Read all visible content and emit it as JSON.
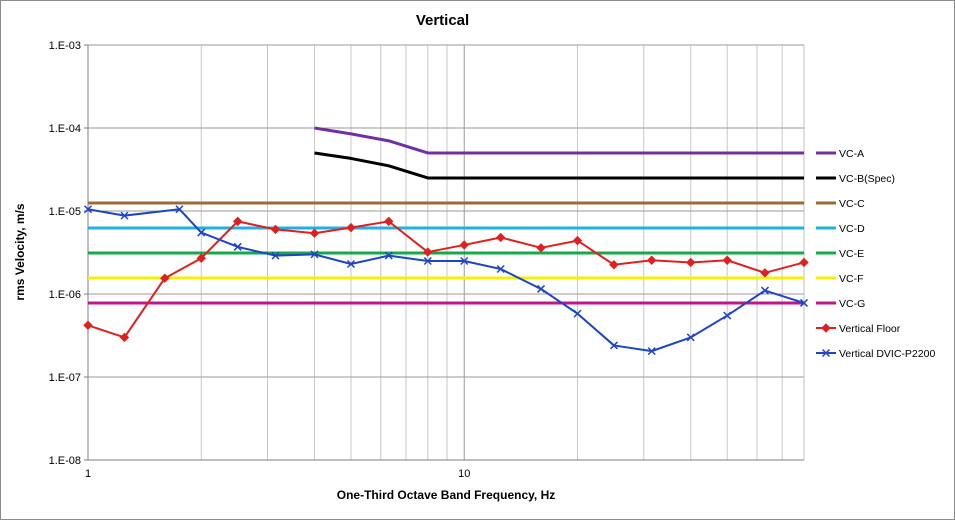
{
  "chart_data": {
    "type": "line",
    "title": "Vertical",
    "xlabel": "One-Third Octave Band Frequency, Hz",
    "ylabel": "rms Velocity, m/s",
    "x_scale": "log",
    "y_scale": "log",
    "xlim": [
      1,
      80
    ],
    "ylim": [
      1e-08,
      0.001
    ],
    "x_ticks": [
      {
        "value": 1,
        "label": "1"
      },
      {
        "value": 10,
        "label": "10"
      }
    ],
    "y_ticks": [
      {
        "value": 1e-08,
        "label": "1.E-08"
      },
      {
        "value": 1e-07,
        "label": "1.E-07"
      },
      {
        "value": 1e-06,
        "label": "1.E-06"
      },
      {
        "value": 1e-05,
        "label": "1.E-05"
      },
      {
        "value": 0.0001,
        "label": "1.E-04"
      },
      {
        "value": 0.001,
        "label": "1.E-03"
      }
    ],
    "grid": true,
    "legend": "right",
    "series": [
      {
        "name": "VC-A",
        "color": "#7030a0",
        "marker": "none",
        "width": 3,
        "x": [
          4,
          5,
          6.3,
          8,
          10,
          80
        ],
        "y": [
          0.0001,
          8.5e-05,
          7e-05,
          5e-05,
          5e-05,
          5e-05
        ]
      },
      {
        "name": "VC-B(Spec)",
        "color": "#000000",
        "marker": "none",
        "width": 3,
        "x": [
          4,
          5,
          6.3,
          8,
          10,
          80
        ],
        "y": [
          5e-05,
          4.3e-05,
          3.5e-05,
          2.5e-05,
          2.5e-05,
          2.5e-05
        ]
      },
      {
        "name": "VC-C",
        "color": "#9c6a34",
        "marker": "none",
        "width": 3,
        "x": [
          1,
          80
        ],
        "y": [
          1.25e-05,
          1.25e-05
        ]
      },
      {
        "name": "VC-D",
        "color": "#1fb0e6",
        "marker": "none",
        "width": 3,
        "x": [
          1,
          80
        ],
        "y": [
          6.25e-06,
          6.25e-06
        ]
      },
      {
        "name": "VC-E",
        "color": "#17a84a",
        "marker": "none",
        "width": 3,
        "x": [
          1,
          80
        ],
        "y": [
          3.12e-06,
          3.12e-06
        ]
      },
      {
        "name": "VC-F",
        "color": "#f5f000",
        "marker": "none",
        "width": 3,
        "x": [
          1,
          80
        ],
        "y": [
          1.56e-06,
          1.56e-06
        ]
      },
      {
        "name": "VC-G",
        "color": "#c0178a",
        "marker": "none",
        "width": 3,
        "x": [
          1,
          80
        ],
        "y": [
          7.8e-07,
          7.8e-07
        ]
      },
      {
        "name": "Vertical Floor",
        "color": "#e02020",
        "marker": "diamond",
        "width": 2,
        "x": [
          1,
          1.25,
          1.6,
          2,
          2.5,
          3.15,
          4,
          5,
          6.3,
          8,
          10,
          12.5,
          16,
          20,
          25,
          31.5,
          40,
          50,
          63,
          80
        ],
        "y": [
          4.2e-07,
          3e-07,
          1.55e-06,
          2.7e-06,
          7.5e-06,
          6e-06,
          5.4e-06,
          6.3e-06,
          7.5e-06,
          3.2e-06,
          3.9e-06,
          4.8e-06,
          3.6e-06,
          4.4e-06,
          2.25e-06,
          2.55e-06,
          2.4e-06,
          2.55e-06,
          1.8e-06,
          2.4e-06
        ]
      },
      {
        "name": "Vertical DVIC-P2200",
        "color": "#1f44c4",
        "marker": "x",
        "width": 2,
        "x": [
          1,
          1.25,
          1.75,
          2,
          2.5,
          3.15,
          4,
          5,
          6.3,
          8,
          10,
          12.5,
          16,
          20,
          25,
          31.5,
          40,
          50,
          63,
          80
        ],
        "y": [
          1.05e-05,
          8.8e-06,
          1.05e-05,
          5.5e-06,
          3.7e-06,
          2.9e-06,
          3e-06,
          2.3e-06,
          2.9e-06,
          2.5e-06,
          2.5e-06,
          2e-06,
          1.15e-06,
          5.8e-07,
          2.4e-07,
          2.05e-07,
          3e-07,
          5.5e-07,
          1.1e-06,
          7.8e-07
        ]
      }
    ]
  }
}
